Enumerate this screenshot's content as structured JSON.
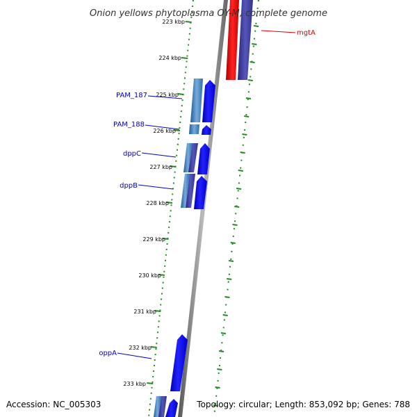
{
  "title": "Onion yellows phytoplasma OY-M, complete genome",
  "footer": {
    "accession": "Accession: NC_005303",
    "summary": "Topology: circular; Length: 853,092 bp; Genes: 788"
  },
  "ticks": [
    "223 kbp",
    "224 kbp",
    "225 kbp",
    "226 kbp",
    "227 kbp",
    "228 kbp",
    "229 kbp",
    "230 kbp",
    "231 kbp",
    "232 kbp",
    "233 kbp"
  ],
  "gene_labels": [
    {
      "id": "mgtA",
      "text": "mgtA",
      "color": "#dd0000"
    },
    {
      "id": "pam187",
      "text": "PAM_187",
      "color": "#0000cc"
    },
    {
      "id": "pam188",
      "text": "PAM_188",
      "color": "#0000cc"
    },
    {
      "id": "dppc",
      "text": "dppC",
      "color": "#0000cc"
    },
    {
      "id": "dppb",
      "text": "dppB",
      "color": "#0000cc"
    },
    {
      "id": "oppa",
      "text": "oppA",
      "color": "#0000cc"
    }
  ],
  "colors": {
    "forward_gene": "#0000ee",
    "reverse_gene": "#3d3d99",
    "blast_match": "#4a8fc4",
    "rna_gene": "#ee0000",
    "ticks": "#228b22",
    "backbone": "#888888"
  }
}
